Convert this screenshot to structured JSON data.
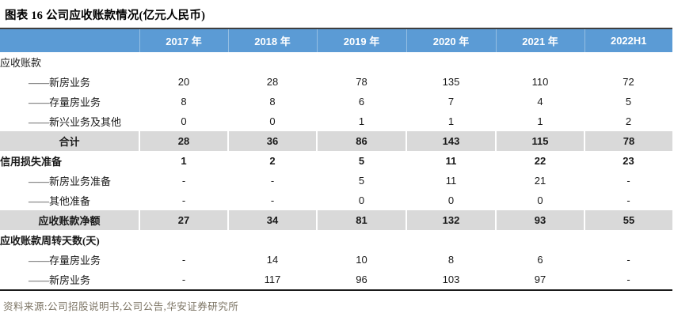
{
  "title": "图表 16 公司应收账款情况(亿元人民币)",
  "source_line": "资料来源:公司招股说明书,公司公告,华安证券研究所",
  "colors": {
    "header_bg": "#5B9BD5",
    "header_text": "#FFFFFF",
    "stripe_gray": "#D9D9D9",
    "top_border": "#3F3F3F",
    "bottom_border": "#1A1A1A",
    "source_text": "#7C7464"
  },
  "chart_data": {
    "type": "table",
    "title": "图表 16 公司应收账款情况(亿元人民币)",
    "columns": [
      "2017 年",
      "2018 年",
      "2019 年",
      "2020 年",
      "2021 年",
      "2022H1"
    ],
    "rows": [
      {
        "label": "应收账款",
        "style": "section",
        "values": [
          "",
          "",
          "",
          "",
          "",
          ""
        ]
      },
      {
        "label": "——新房业务",
        "style": "detail",
        "values": [
          "20",
          "28",
          "78",
          "135",
          "110",
          "72"
        ]
      },
      {
        "label": "——存量房业务",
        "style": "detail",
        "values": [
          "8",
          "8",
          "6",
          "7",
          "4",
          "5"
        ]
      },
      {
        "label": "——新兴业务及其他",
        "style": "detail",
        "values": [
          "0",
          "0",
          "1",
          "1",
          "1",
          "2"
        ]
      },
      {
        "label": "合计",
        "style": "gray",
        "values": [
          "28",
          "36",
          "86",
          "143",
          "115",
          "78"
        ]
      },
      {
        "label": "信用损失准备",
        "style": "section-bold",
        "values": [
          "1",
          "2",
          "5",
          "11",
          "22",
          "23"
        ]
      },
      {
        "label": "——新房业务准备",
        "style": "detail",
        "values": [
          "-",
          "-",
          "5",
          "11",
          "21",
          "-"
        ]
      },
      {
        "label": "——其他准备",
        "style": "detail",
        "values": [
          "-",
          "-",
          "0",
          "0",
          "0",
          "-"
        ]
      },
      {
        "label": "应收账款净额",
        "style": "gray",
        "values": [
          "27",
          "34",
          "81",
          "132",
          "93",
          "55"
        ]
      },
      {
        "label": "应收账款周转天数(天)",
        "style": "section-bold",
        "values": [
          "",
          "",
          "",
          "",
          "",
          ""
        ]
      },
      {
        "label": "——存量房业务",
        "style": "detail",
        "values": [
          "-",
          "14",
          "10",
          "8",
          "6",
          "-"
        ]
      },
      {
        "label": "——新房业务",
        "style": "detail",
        "values": [
          "-",
          "117",
          "96",
          "103",
          "97",
          "-"
        ]
      }
    ]
  }
}
